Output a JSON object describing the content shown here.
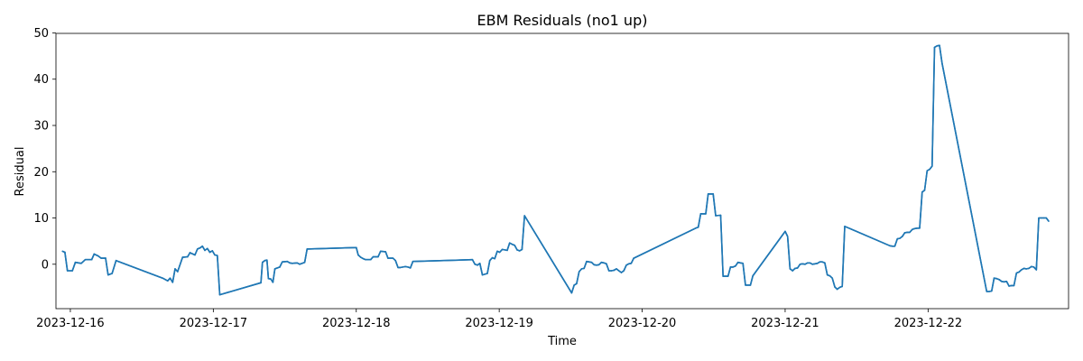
{
  "chart_data": {
    "type": "line",
    "title": "EBM Residuals (no1 up)",
    "xlabel": "Time",
    "ylabel": "Residual",
    "x_axis_kind": "datetime",
    "xlim": [
      "2023-12-15 21:35",
      "2023-12-22 23:35"
    ],
    "ylim": [
      -9.6,
      49.9
    ],
    "x_ticks": [
      "2023-12-16",
      "2023-12-17",
      "2023-12-18",
      "2023-12-19",
      "2023-12-20",
      "2023-12-21",
      "2023-12-22"
    ],
    "y_ticks": [
      0,
      10,
      20,
      30,
      40,
      50
    ],
    "grid": false,
    "legend": "none",
    "series": [
      {
        "color": "#1f77b4",
        "points": [
          [
            "2023-12-15 22:40",
            2.8
          ],
          [
            "2023-12-15 23:05",
            2.6
          ],
          [
            "2023-12-15 23:30",
            -1.4
          ],
          [
            "2023-12-16 00:20",
            -1.4
          ],
          [
            "2023-12-16 00:50",
            0.4
          ],
          [
            "2023-12-16 01:50",
            0.2
          ],
          [
            "2023-12-16 02:30",
            1.0
          ],
          [
            "2023-12-16 03:35",
            1.0
          ],
          [
            "2023-12-16 04:00",
            2.2
          ],
          [
            "2023-12-16 04:40",
            1.8
          ],
          [
            "2023-12-16 05:10",
            1.3
          ],
          [
            "2023-12-16 05:55",
            1.3
          ],
          [
            "2023-12-16 06:20",
            -2.3
          ],
          [
            "2023-12-16 07:00",
            -2.0
          ],
          [
            "2023-12-16 07:40",
            0.8
          ],
          [
            "2023-12-16 15:30",
            -3.0
          ],
          [
            "2023-12-16 16:20",
            -3.6
          ],
          [
            "2023-12-16 16:45",
            -3.0
          ],
          [
            "2023-12-16 17:10",
            -3.9
          ],
          [
            "2023-12-16 17:35",
            -1.0
          ],
          [
            "2023-12-16 18:00",
            -1.6
          ],
          [
            "2023-12-16 18:50",
            1.5
          ],
          [
            "2023-12-16 19:40",
            1.6
          ],
          [
            "2023-12-16 20:05",
            2.5
          ],
          [
            "2023-12-16 20:55",
            2.0
          ],
          [
            "2023-12-16 21:20",
            3.3
          ],
          [
            "2023-12-16 21:45",
            3.5
          ],
          [
            "2023-12-16 22:10",
            3.9
          ],
          [
            "2023-12-16 22:35",
            3.0
          ],
          [
            "2023-12-16 23:00",
            3.4
          ],
          [
            "2023-12-16 23:25",
            2.6
          ],
          [
            "2023-12-16 23:50",
            2.9
          ],
          [
            "2023-12-17 00:15",
            2.0
          ],
          [
            "2023-12-17 00:40",
            1.9
          ],
          [
            "2023-12-17 01:05",
            -6.6
          ],
          [
            "2023-12-17 08:00",
            -4.0
          ],
          [
            "2023-12-17 08:15",
            0.4
          ],
          [
            "2023-12-17 08:40",
            0.8
          ],
          [
            "2023-12-17 09:00",
            0.9
          ],
          [
            "2023-12-17 09:15",
            -3.1
          ],
          [
            "2023-12-17 09:40",
            -3.2
          ],
          [
            "2023-12-17 10:00",
            -3.9
          ],
          [
            "2023-12-17 10:20",
            -1.0
          ],
          [
            "2023-12-17 10:45",
            -0.8
          ],
          [
            "2023-12-17 11:10",
            -0.6
          ],
          [
            "2023-12-17 11:35",
            0.5
          ],
          [
            "2023-12-17 12:25",
            0.6
          ],
          [
            "2023-12-17 12:50",
            0.3
          ],
          [
            "2023-12-17 13:15",
            0.2
          ],
          [
            "2023-12-17 14:05",
            0.3
          ],
          [
            "2023-12-17 14:30",
            0.0
          ],
          [
            "2023-12-17 15:20",
            0.4
          ],
          [
            "2023-12-17 15:45",
            3.3
          ],
          [
            "2023-12-18 00:00",
            3.6
          ],
          [
            "2023-12-18 00:20",
            2.0
          ],
          [
            "2023-12-18 00:45",
            1.5
          ],
          [
            "2023-12-18 01:10",
            1.2
          ],
          [
            "2023-12-18 01:35",
            1.0
          ],
          [
            "2023-12-18 02:25",
            1.0
          ],
          [
            "2023-12-18 02:50",
            1.6
          ],
          [
            "2023-12-18 03:40",
            1.6
          ],
          [
            "2023-12-18 04:05",
            2.8
          ],
          [
            "2023-12-18 04:55",
            2.7
          ],
          [
            "2023-12-18 05:20",
            1.3
          ],
          [
            "2023-12-18 06:10",
            1.3
          ],
          [
            "2023-12-18 06:35",
            0.8
          ],
          [
            "2023-12-18 07:00",
            -0.7
          ],
          [
            "2023-12-18 07:25",
            -0.7
          ],
          [
            "2023-12-18 08:15",
            -0.5
          ],
          [
            "2023-12-18 08:40",
            -0.6
          ],
          [
            "2023-12-18 09:05",
            -0.8
          ],
          [
            "2023-12-18 09:30",
            0.6
          ],
          [
            "2023-12-18 19:30",
            1.0
          ],
          [
            "2023-12-18 19:55",
            0.0
          ],
          [
            "2023-12-18 20:20",
            -0.2
          ],
          [
            "2023-12-18 20:45",
            0.2
          ],
          [
            "2023-12-18 21:10",
            -2.3
          ],
          [
            "2023-12-18 22:00",
            -2.0
          ],
          [
            "2023-12-18 22:25",
            0.8
          ],
          [
            "2023-12-18 22:50",
            1.4
          ],
          [
            "2023-12-18 23:15",
            1.2
          ],
          [
            "2023-12-18 23:40",
            2.8
          ],
          [
            "2023-12-19 00:05",
            2.6
          ],
          [
            "2023-12-19 00:30",
            3.2
          ],
          [
            "2023-12-19 01:20",
            3.0
          ],
          [
            "2023-12-19 01:45",
            4.6
          ],
          [
            "2023-12-19 02:10",
            4.3
          ],
          [
            "2023-12-19 02:35",
            4.1
          ],
          [
            "2023-12-19 03:00",
            3.1
          ],
          [
            "2023-12-19 03:25",
            2.9
          ],
          [
            "2023-12-19 03:50",
            3.2
          ],
          [
            "2023-12-19 04:15",
            10.5
          ],
          [
            "2023-12-19 12:10",
            -6.2
          ],
          [
            "2023-12-19 12:35",
            -4.5
          ],
          [
            "2023-12-19 13:00",
            -4.2
          ],
          [
            "2023-12-19 13:25",
            -1.6
          ],
          [
            "2023-12-19 13:50",
            -1.0
          ],
          [
            "2023-12-19 14:15",
            -0.9
          ],
          [
            "2023-12-19 14:40",
            0.6
          ],
          [
            "2023-12-19 15:05",
            0.5
          ],
          [
            "2023-12-19 15:30",
            0.4
          ],
          [
            "2023-12-19 15:55",
            -0.1
          ],
          [
            "2023-12-19 16:20",
            -0.2
          ],
          [
            "2023-12-19 16:45",
            -0.1
          ],
          [
            "2023-12-19 17:10",
            0.4
          ],
          [
            "2023-12-19 17:35",
            0.3
          ],
          [
            "2023-12-19 18:00",
            0.1
          ],
          [
            "2023-12-19 18:25",
            -1.4
          ],
          [
            "2023-12-19 18:50",
            -1.4
          ],
          [
            "2023-12-19 19:15",
            -1.3
          ],
          [
            "2023-12-19 19:40",
            -1.0
          ],
          [
            "2023-12-19 20:05",
            -1.4
          ],
          [
            "2023-12-19 20:30",
            -1.8
          ],
          [
            "2023-12-19 20:55",
            -1.4
          ],
          [
            "2023-12-19 21:20",
            -0.2
          ],
          [
            "2023-12-19 21:45",
            0.1
          ],
          [
            "2023-12-19 22:10",
            0.2
          ],
          [
            "2023-12-19 22:35",
            1.3
          ],
          [
            "2023-12-20 09:00",
            7.8
          ],
          [
            "2023-12-20 09:25",
            8.0
          ],
          [
            "2023-12-20 09:50",
            10.9
          ],
          [
            "2023-12-20 10:40",
            10.9
          ],
          [
            "2023-12-20 11:05",
            15.2
          ],
          [
            "2023-12-20 11:55",
            15.2
          ],
          [
            "2023-12-20 12:20",
            10.5
          ],
          [
            "2023-12-20 13:10",
            10.6
          ],
          [
            "2023-12-20 13:35",
            -2.6
          ],
          [
            "2023-12-20 14:25",
            -2.6
          ],
          [
            "2023-12-20 14:50",
            -0.6
          ],
          [
            "2023-12-20 15:15",
            -0.6
          ],
          [
            "2023-12-20 15:40",
            -0.4
          ],
          [
            "2023-12-20 16:05",
            0.4
          ],
          [
            "2023-12-20 16:30",
            0.3
          ],
          [
            "2023-12-20 16:55",
            0.2
          ],
          [
            "2023-12-20 17:20",
            -4.5
          ],
          [
            "2023-12-20 18:10",
            -4.5
          ],
          [
            "2023-12-20 18:35",
            -2.5
          ],
          [
            "2023-12-21 00:00",
            7.1
          ],
          [
            "2023-12-21 00:25",
            6.0
          ],
          [
            "2023-12-21 00:50",
            -1.0
          ],
          [
            "2023-12-21 01:15",
            -1.4
          ],
          [
            "2023-12-21 01:40",
            -0.9
          ],
          [
            "2023-12-21 02:05",
            -0.8
          ],
          [
            "2023-12-21 02:30",
            0.0
          ],
          [
            "2023-12-21 02:55",
            0.1
          ],
          [
            "2023-12-21 03:20",
            0.0
          ],
          [
            "2023-12-21 03:45",
            0.3
          ],
          [
            "2023-12-21 04:10",
            0.3
          ],
          [
            "2023-12-21 04:35",
            0.0
          ],
          [
            "2023-12-21 05:00",
            0.1
          ],
          [
            "2023-12-21 05:25",
            0.2
          ],
          [
            "2023-12-21 05:50",
            0.5
          ],
          [
            "2023-12-21 06:15",
            0.5
          ],
          [
            "2023-12-21 06:40",
            0.3
          ],
          [
            "2023-12-21 07:05",
            -2.3
          ],
          [
            "2023-12-21 07:30",
            -2.5
          ],
          [
            "2023-12-21 07:55",
            -3.0
          ],
          [
            "2023-12-21 08:20",
            -4.9
          ],
          [
            "2023-12-21 08:45",
            -5.4
          ],
          [
            "2023-12-21 09:10",
            -5.0
          ],
          [
            "2023-12-21 09:35",
            -4.8
          ],
          [
            "2023-12-21 10:00",
            8.2
          ],
          [
            "2023-12-21 17:35",
            4.0
          ],
          [
            "2023-12-21 18:00",
            3.9
          ],
          [
            "2023-12-21 18:25",
            3.9
          ],
          [
            "2023-12-21 18:50",
            5.5
          ],
          [
            "2023-12-21 19:15",
            5.6
          ],
          [
            "2023-12-21 19:40",
            6.0
          ],
          [
            "2023-12-21 20:05",
            6.8
          ],
          [
            "2023-12-21 20:30",
            6.9
          ],
          [
            "2023-12-21 20:55",
            6.9
          ],
          [
            "2023-12-21 21:20",
            7.5
          ],
          [
            "2023-12-21 21:45",
            7.7
          ],
          [
            "2023-12-21 22:10",
            7.8
          ],
          [
            "2023-12-21 22:35",
            7.8
          ],
          [
            "2023-12-21 23:00",
            15.6
          ],
          [
            "2023-12-21 23:25",
            16.0
          ],
          [
            "2023-12-21 23:50",
            20.2
          ],
          [
            "2023-12-22 00:15",
            20.5
          ],
          [
            "2023-12-22 00:40",
            21.2
          ],
          [
            "2023-12-22 01:05",
            46.9
          ],
          [
            "2023-12-22 01:30",
            47.2
          ],
          [
            "2023-12-22 01:55",
            47.3
          ],
          [
            "2023-12-22 02:20",
            43.5
          ],
          [
            "2023-12-22 09:50",
            -5.9
          ],
          [
            "2023-12-22 10:15",
            -5.9
          ],
          [
            "2023-12-22 10:40",
            -5.8
          ],
          [
            "2023-12-22 11:05",
            -3.0
          ],
          [
            "2023-12-22 11:30",
            -3.1
          ],
          [
            "2023-12-22 11:55",
            -3.3
          ],
          [
            "2023-12-22 12:20",
            -3.7
          ],
          [
            "2023-12-22 12:45",
            -3.8
          ],
          [
            "2023-12-22 13:10",
            -3.7
          ],
          [
            "2023-12-22 13:35",
            -4.7
          ],
          [
            "2023-12-22 14:00",
            -4.6
          ],
          [
            "2023-12-22 14:25",
            -4.6
          ],
          [
            "2023-12-22 14:50",
            -1.9
          ],
          [
            "2023-12-22 15:15",
            -1.7
          ],
          [
            "2023-12-22 15:40",
            -1.2
          ],
          [
            "2023-12-22 16:05",
            -0.9
          ],
          [
            "2023-12-22 16:30",
            -1.0
          ],
          [
            "2023-12-22 16:55",
            -0.9
          ],
          [
            "2023-12-22 17:20",
            -0.5
          ],
          [
            "2023-12-22 17:45",
            -0.6
          ],
          [
            "2023-12-22 18:10",
            -1.2
          ],
          [
            "2023-12-22 18:35",
            10.0
          ],
          [
            "2023-12-22 19:00",
            10.0
          ],
          [
            "2023-12-22 19:25",
            10.0
          ],
          [
            "2023-12-22 19:50",
            10.0
          ],
          [
            "2023-12-22 20:15",
            9.3
          ]
        ]
      }
    ]
  }
}
